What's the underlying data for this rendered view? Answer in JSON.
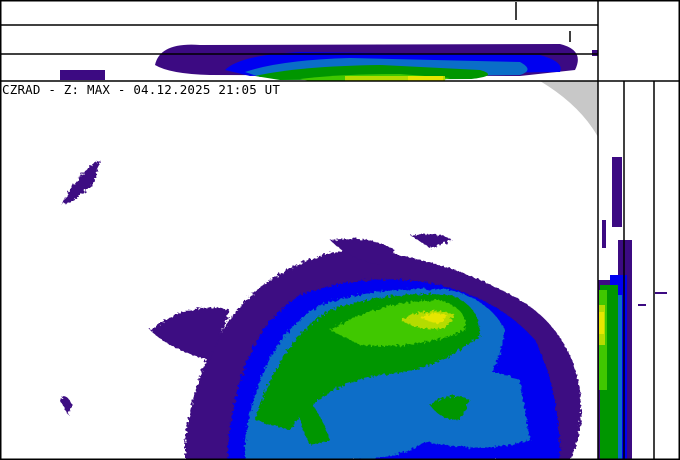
{
  "header": {
    "title": "CZRAD - Z: MAX - 04.12.2025 21:05 UT"
  },
  "colors": {
    "no_coverage": "#c8c8c8",
    "level_1": "#3c0a82",
    "level_2": "#0000f0",
    "level_3": "#0a6ec8",
    "level_4": "#009600",
    "level_5": "#40c800",
    "level_6": "#b4dc00",
    "level_7": "#e6e600",
    "frame": "#000000"
  },
  "panels": [
    "plan-view-max",
    "top-projection",
    "side-projection"
  ]
}
